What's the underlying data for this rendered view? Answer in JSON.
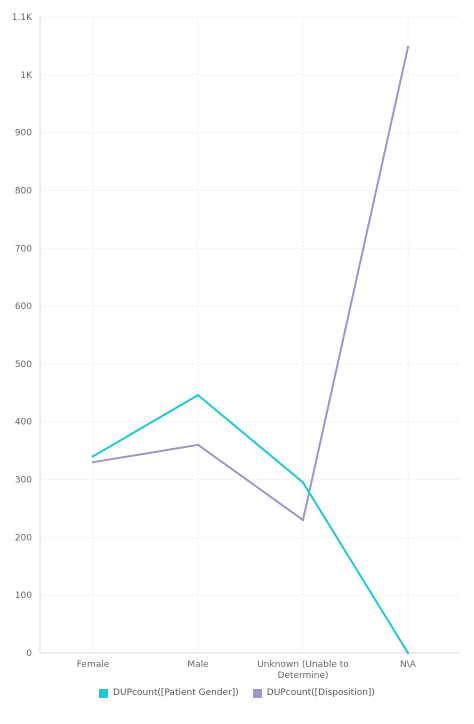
{
  "chart_data": {
    "type": "line",
    "title": "",
    "xlabel": "",
    "ylabel": "",
    "categories": [
      "Female",
      "Male",
      "Unknown (Unable to Determine)",
      "N\\A"
    ],
    "y_ticks": [
      "0",
      "100",
      "200",
      "300",
      "400",
      "500",
      "600",
      "700",
      "800",
      "900",
      "1K",
      "1.1K"
    ],
    "ylim": [
      0,
      1100
    ],
    "grid": true,
    "legend_position": "bottom",
    "series": [
      {
        "name": "DUPcount([Patient Gender])",
        "color": "#1ec8d8",
        "values": [
          340,
          446,
          295,
          0
        ]
      },
      {
        "name": "DUPcount([Disposition])",
        "color": "#9b97c9",
        "values": [
          330,
          360,
          230,
          1048
        ]
      }
    ]
  }
}
